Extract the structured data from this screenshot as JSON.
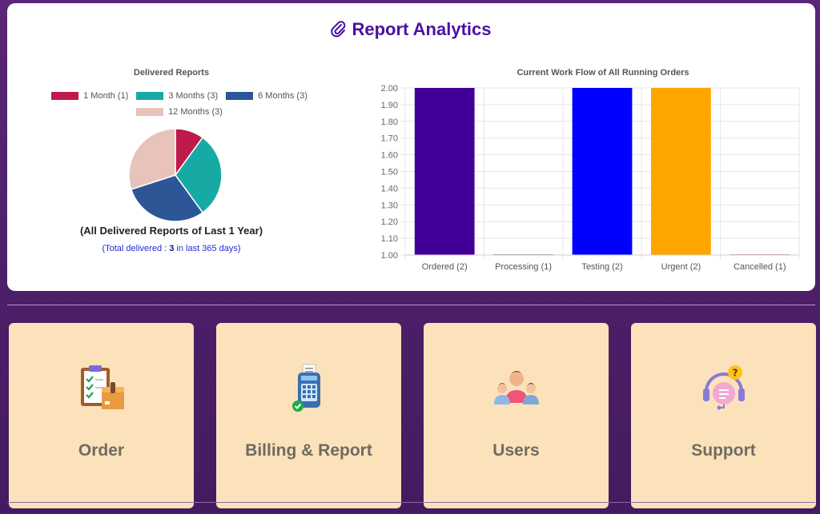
{
  "header": {
    "title": "Report Analytics",
    "icon": "paperclip-icon"
  },
  "pie": {
    "title": "Delivered Reports",
    "caption": "(All Delivered Reports of Last 1 Year)",
    "sub_prefix": "(Total delivered : ",
    "sub_count": "3",
    "sub_suffix": " in last 365 days)"
  },
  "bar": {
    "title": "Current Work Flow of All Running Orders"
  },
  "chart_data": [
    {
      "type": "pie",
      "title": "Delivered Reports",
      "labels": [
        "1 Month (1)",
        "3 Months (3)",
        "6 Months (3)",
        "12 Months (3)"
      ],
      "values": [
        1,
        3,
        3,
        3
      ],
      "colors": [
        "#be1a4a",
        "#17aaa5",
        "#2d5697",
        "#e7c3bb"
      ],
      "legend": "top"
    },
    {
      "type": "bar",
      "title": "Current Work Flow of All Running Orders",
      "categories": [
        "Ordered (2)",
        "Processing (1)",
        "Testing (2)",
        "Urgent (2)",
        "Cancelled (1)"
      ],
      "values": [
        2,
        1,
        2,
        2,
        1
      ],
      "colors": [
        "#430099",
        "#8a8a8a",
        "#0000ff",
        "#ffa500",
        "#d4869a"
      ],
      "ylim": [
        1.0,
        2.0
      ],
      "yticks": [
        "2.00",
        "1.90",
        "1.80",
        "1.70",
        "1.60",
        "1.50",
        "1.40",
        "1.30",
        "1.20",
        "1.10",
        "1.00"
      ],
      "grid": true
    }
  ],
  "cards": [
    {
      "label": "Order",
      "icon": "order-clipboard-icon"
    },
    {
      "label": "Billing & Report",
      "icon": "billing-terminal-icon"
    },
    {
      "label": "Users",
      "icon": "users-group-icon"
    },
    {
      "label": "Support",
      "icon": "support-headset-icon"
    }
  ]
}
